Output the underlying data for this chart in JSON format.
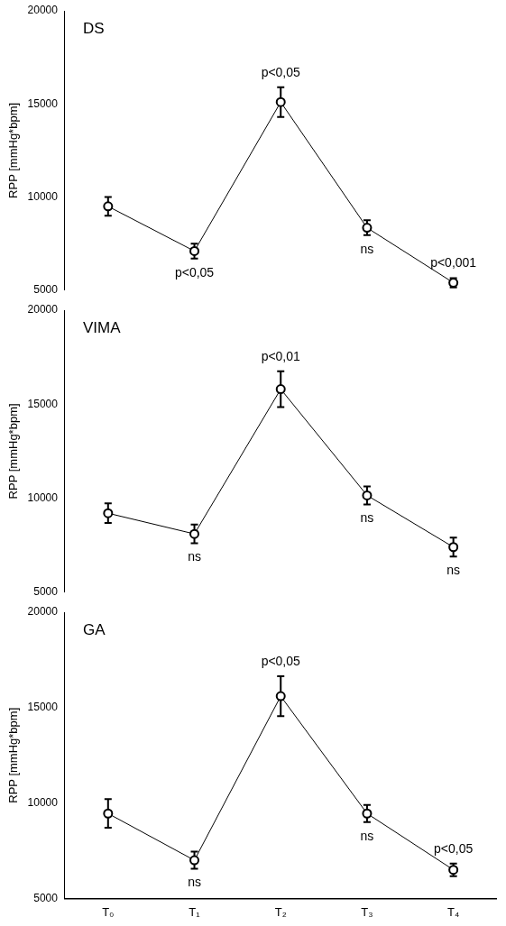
{
  "chart_data": [
    {
      "type": "line",
      "title": "DS",
      "ylabel": "RPP [mmHg*bpm]",
      "categories": [
        "T₀",
        "T₁",
        "T₂",
        "T₃",
        "T₄"
      ],
      "values": [
        9500,
        7100,
        15100,
        8350,
        5400
      ],
      "errors": [
        500,
        400,
        800,
        400,
        250
      ],
      "color": "#000000",
      "marker": "circle",
      "ylim": [
        5000,
        20000
      ],
      "yticks": [
        5000,
        10000,
        15000,
        20000
      ],
      "tick_labels": "y",
      "annotations": [
        {
          "text": "p<0,05",
          "x": "T₁",
          "y": 7100
        },
        {
          "text": "p<0,05",
          "x": "T₂",
          "y": 15100
        },
        {
          "text": "ns",
          "x": "T₃",
          "y": 8350
        },
        {
          "text": "p<0,001",
          "x": "T₄",
          "y": 5400
        }
      ]
    },
    {
      "type": "line",
      "title": "VIMA",
      "ylabel": "RPP [mmHg*bpm]",
      "categories": [
        "T₀",
        "T₁",
        "T₂",
        "T₃",
        "T₄"
      ],
      "values": [
        9200,
        8100,
        15800,
        10150,
        7400
      ],
      "errors": [
        520,
        500,
        950,
        480,
        500
      ],
      "color": "#000000",
      "marker": "circle",
      "ylim": [
        5000,
        20000
      ],
      "yticks": [
        5000,
        10000,
        15000,
        20000
      ],
      "tick_labels": "y",
      "annotations": [
        {
          "text": "ns",
          "x": "T₁",
          "y": 8100
        },
        {
          "text": "p<0,01",
          "x": "T₂",
          "y": 15800
        },
        {
          "text": "ns",
          "x": "T₃",
          "y": 10150
        },
        {
          "text": "ns",
          "x": "T₄",
          "y": 7400
        }
      ]
    },
    {
      "type": "line",
      "title": "GA",
      "ylabel": "RPP [mmHg*bpm]",
      "categories": [
        "T₀",
        "T₁",
        "T₂",
        "T₃",
        "T₄"
      ],
      "values": [
        9450,
        7000,
        15600,
        9450,
        6500
      ],
      "errors": [
        750,
        450,
        1050,
        450,
        330
      ],
      "color": "#000000",
      "marker": "circle",
      "ylim": [
        5000,
        20000
      ],
      "yticks": [
        5000,
        10000,
        15000,
        20000
      ],
      "annotations": [
        {
          "text": "ns",
          "x": "T₁",
          "y": 7000
        },
        {
          "text": "p<0,05",
          "x": "T₂",
          "y": 15600
        },
        {
          "text": "ns",
          "x": "T₃",
          "y": 9450
        },
        {
          "text": "p<0,05",
          "x": "T₄",
          "y": 6500
        }
      ]
    }
  ]
}
